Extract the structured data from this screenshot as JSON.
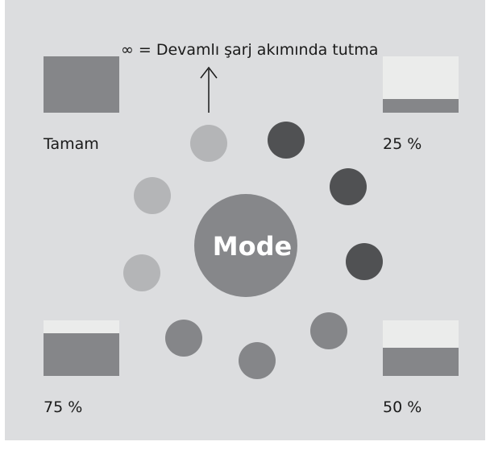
{
  "note_text": "∞ = Devamlı şarj akımında tutma",
  "center_label": "Mode",
  "states": [
    {
      "label": "Tamam"
    },
    {
      "label": "25 %"
    },
    {
      "label": "75 %"
    },
    {
      "label": "50 %"
    }
  ]
}
